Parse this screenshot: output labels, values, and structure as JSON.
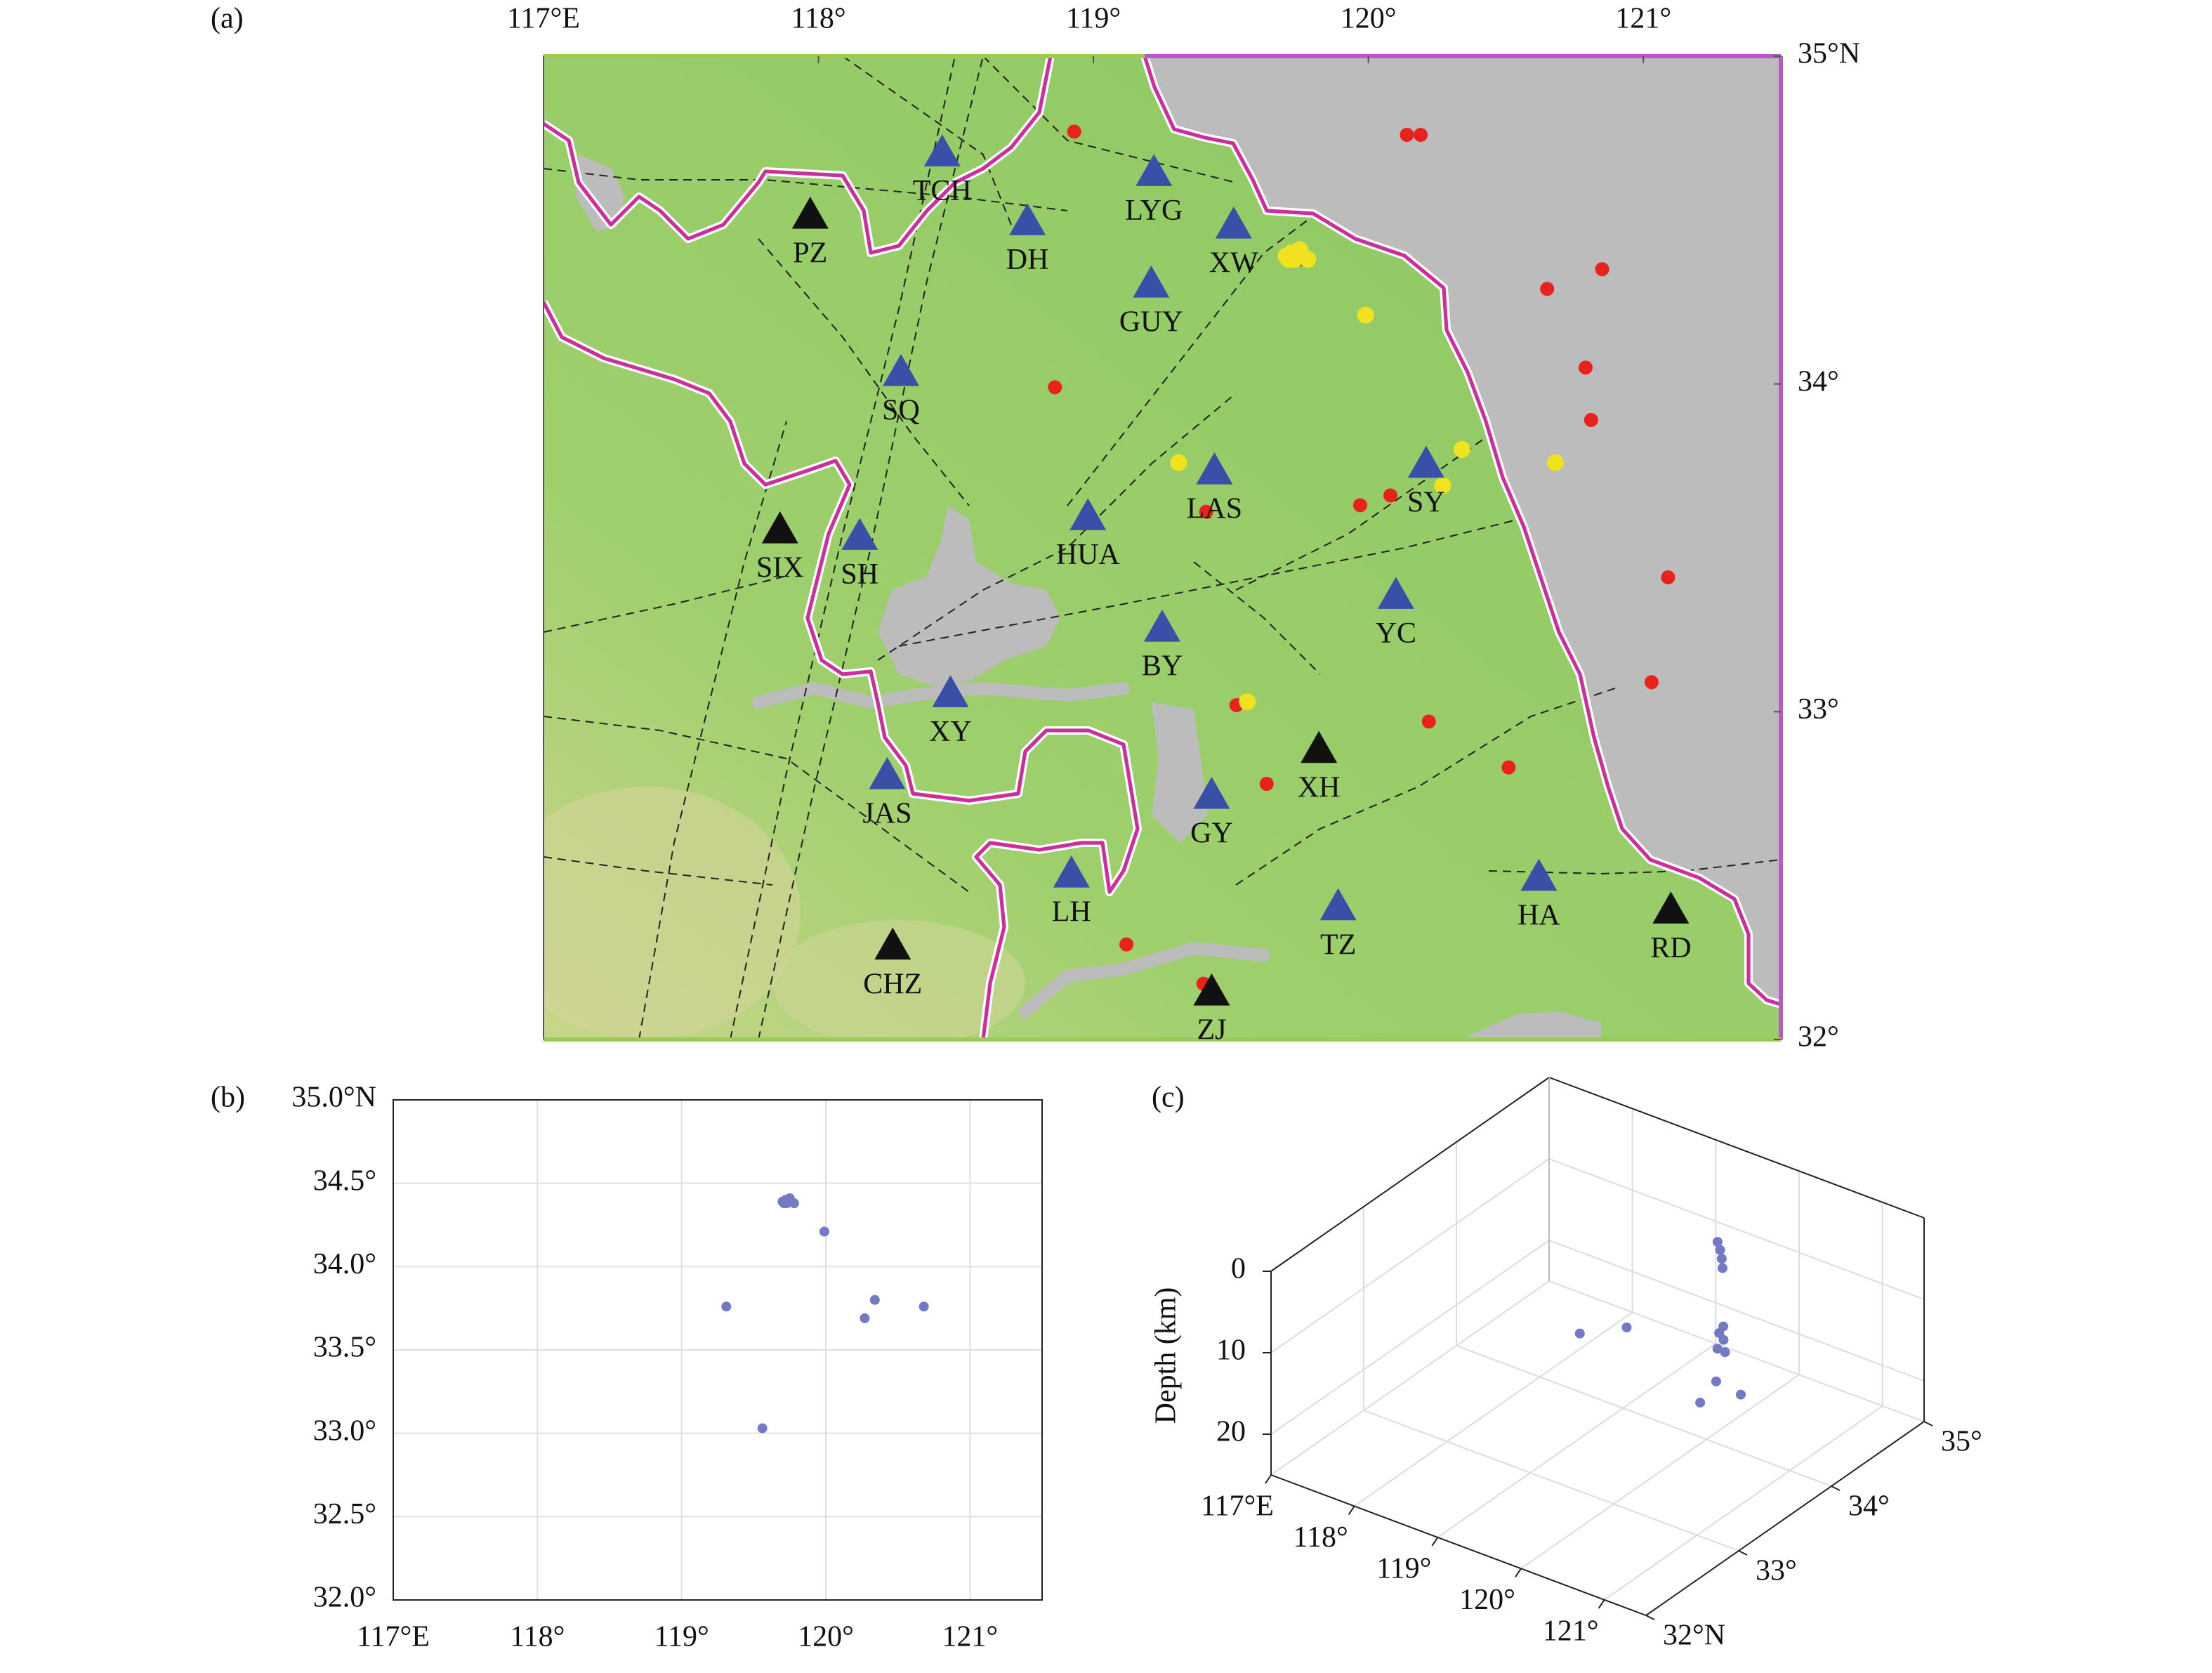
{
  "chart_data": [
    {
      "type": "map",
      "panel_label": "(a)",
      "xlim": [
        117,
        121.5
      ],
      "ylim": [
        32,
        35
      ],
      "xticks": [
        {
          "value": 117,
          "label": "117°E"
        },
        {
          "value": 118,
          "label": "118°"
        },
        {
          "value": 119,
          "label": "119°"
        },
        {
          "value": 120,
          "label": "120°"
        },
        {
          "value": 121,
          "label": "121°"
        }
      ],
      "yticks": [
        {
          "value": 32,
          "label": "32°"
        },
        {
          "value": 33,
          "label": "33°"
        },
        {
          "value": 34,
          "label": "34°"
        },
        {
          "value": 35,
          "label": "35°N"
        }
      ],
      "stations": [
        {
          "label": "TCH",
          "lon": 118.45,
          "lat": 34.71,
          "color": "#3a4fa8"
        },
        {
          "label": "PZ",
          "lon": 117.97,
          "lat": 34.52,
          "color": "#111111"
        },
        {
          "label": "DH",
          "lon": 118.76,
          "lat": 34.5,
          "color": "#3a4fa8"
        },
        {
          "label": "LYG",
          "lon": 119.22,
          "lat": 34.65,
          "color": "#3a4fa8"
        },
        {
          "label": "XW",
          "lon": 119.51,
          "lat": 34.49,
          "color": "#3a4fa8"
        },
        {
          "label": "GUY",
          "lon": 119.21,
          "lat": 34.31,
          "color": "#3a4fa8"
        },
        {
          "label": "SQ",
          "lon": 118.3,
          "lat": 34.04,
          "color": "#3a4fa8"
        },
        {
          "label": "LAS",
          "lon": 119.44,
          "lat": 33.74,
          "color": "#3a4fa8"
        },
        {
          "label": "SY",
          "lon": 120.21,
          "lat": 33.76,
          "color": "#3a4fa8"
        },
        {
          "label": "HUA",
          "lon": 118.98,
          "lat": 33.6,
          "color": "#3a4fa8"
        },
        {
          "label": "SIX",
          "lon": 117.86,
          "lat": 33.56,
          "color": "#111111"
        },
        {
          "label": "SH",
          "lon": 118.15,
          "lat": 33.54,
          "color": "#3a4fa8"
        },
        {
          "label": "YC",
          "lon": 120.1,
          "lat": 33.36,
          "color": "#3a4fa8"
        },
        {
          "label": "BY",
          "lon": 119.25,
          "lat": 33.26,
          "color": "#3a4fa8"
        },
        {
          "label": "XY",
          "lon": 118.48,
          "lat": 33.06,
          "color": "#3a4fa8"
        },
        {
          "label": "XH",
          "lon": 119.82,
          "lat": 32.89,
          "color": "#111111"
        },
        {
          "label": "JAS",
          "lon": 118.25,
          "lat": 32.81,
          "color": "#3a4fa8"
        },
        {
          "label": "GY",
          "lon": 119.43,
          "lat": 32.75,
          "color": "#3a4fa8"
        },
        {
          "label": "LH",
          "lon": 118.92,
          "lat": 32.51,
          "color": "#3a4fa8"
        },
        {
          "label": "HA",
          "lon": 120.62,
          "lat": 32.5,
          "color": "#3a4fa8"
        },
        {
          "label": "RD",
          "lon": 121.1,
          "lat": 32.4,
          "color": "#111111"
        },
        {
          "label": "TZ",
          "lon": 119.89,
          "lat": 32.41,
          "color": "#3a4fa8"
        },
        {
          "label": "CHZ",
          "lon": 118.27,
          "lat": 32.29,
          "color": "#111111"
        },
        {
          "label": "ZJ",
          "lon": 119.43,
          "lat": 32.15,
          "color": "#111111"
        }
      ],
      "events": {
        "color": "#e8221c",
        "lon": [
          118.93,
          120.14,
          120.19,
          119.76,
          120.85,
          120.65,
          118.86,
          120.79,
          120.81,
          119.41,
          119.97,
          120.08,
          121.09,
          121.03,
          119.52,
          120.22,
          120.51,
          119.63,
          119.12,
          119.4
        ],
        "lat": [
          34.77,
          34.76,
          34.76,
          34.38,
          34.35,
          34.29,
          33.99,
          34.05,
          33.89,
          33.61,
          33.63,
          33.66,
          33.41,
          33.09,
          33.02,
          32.97,
          32.83,
          32.78,
          32.29,
          32.17
        ]
      },
      "located_events_color": "#f0e21e"
    },
    {
      "type": "scatter",
      "panel_label": "(b)",
      "color": "#7479c4",
      "grid": true,
      "x": [
        119.7,
        119.72,
        119.74,
        119.76,
        119.78,
        119.73,
        119.75,
        119.71,
        119.99,
        119.31,
        120.34,
        120.27,
        120.68,
        119.56
      ],
      "y": [
        34.39,
        34.4,
        34.4,
        34.39,
        34.38,
        34.38,
        34.41,
        34.38,
        34.21,
        33.76,
        33.8,
        33.69,
        33.76,
        33.03
      ],
      "xlim": [
        117,
        121.5
      ],
      "ylim": [
        32,
        35
      ],
      "xticks": [
        {
          "value": 117,
          "label": "117°E"
        },
        {
          "value": 118,
          "label": "118°"
        },
        {
          "value": 119,
          "label": "119°"
        },
        {
          "value": 120,
          "label": "120°"
        },
        {
          "value": 121,
          "label": "121°"
        }
      ],
      "yticks": [
        {
          "value": 32,
          "label": "32.0°"
        },
        {
          "value": 32.5,
          "label": "32.5°"
        },
        {
          "value": 33,
          "label": "33.0°"
        },
        {
          "value": 33.5,
          "label": "33.5°"
        },
        {
          "value": 34,
          "label": "34.0°"
        },
        {
          "value": 34.5,
          "label": "34.5°"
        },
        {
          "value": 35,
          "label": "35.0°N"
        }
      ]
    },
    {
      "type": "scatter3d",
      "panel_label": "(c)",
      "zlabel": "Depth (km)",
      "color": "#7479c4",
      "grid": true,
      "x": [
        119.7,
        119.72,
        119.74,
        119.76,
        119.78,
        119.73,
        119.75,
        119.71,
        119.99,
        119.31,
        120.34,
        120.27,
        120.68,
        119.56
      ],
      "y": [
        34.39,
        34.4,
        34.4,
        34.39,
        34.38,
        34.38,
        34.41,
        34.38,
        34.21,
        33.76,
        33.8,
        33.69,
        33.76,
        33.03
      ],
      "z": [
        5,
        6,
        7,
        8,
        15,
        16,
        17,
        18,
        16,
        12,
        15,
        17,
        15,
        6
      ],
      "xlim": [
        117,
        121.5
      ],
      "ylim": [
        32,
        35
      ],
      "zlim": [
        0,
        25
      ],
      "xticks": [
        {
          "value": 117,
          "label": "117°E"
        },
        {
          "value": 118,
          "label": "118°"
        },
        {
          "value": 119,
          "label": "119°"
        },
        {
          "value": 120,
          "label": "120°"
        },
        {
          "value": 121,
          "label": "121°"
        }
      ],
      "yticks": [
        {
          "value": 32,
          "label": "32°N"
        },
        {
          "value": 33,
          "label": "33°"
        },
        {
          "value": 34,
          "label": "34°"
        },
        {
          "value": 35,
          "label": "35°"
        }
      ],
      "zticks": [
        0,
        10,
        20
      ]
    }
  ]
}
